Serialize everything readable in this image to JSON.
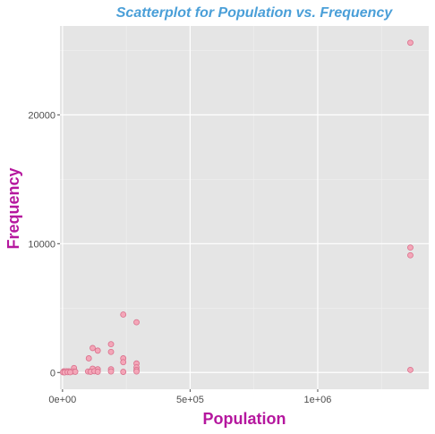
{
  "colors": {
    "title": "#4a9fd8",
    "axis_title": "#b5179e",
    "panel": "#e5e5e5",
    "grid_major": "#ffffff",
    "grid_minor": "#f0f0f0",
    "point_fill": "#f4a6b8",
    "point_stroke": "#d9708c",
    "tick": "#4d4d4d"
  },
  "chart_data": {
    "type": "scatter",
    "title": "Scatterplot for Population vs. Frequency",
    "xlabel": "Population",
    "ylabel": "Frequency",
    "xlim": [
      -10000,
      1435000
    ],
    "ylim": [
      -1300,
      26900
    ],
    "x_ticks": [
      {
        "value": 0,
        "label": "0e+00"
      },
      {
        "value": 500000,
        "label": "5e+05"
      },
      {
        "value": 1000000,
        "label": "1e+06"
      }
    ],
    "y_ticks": [
      {
        "value": 0,
        "label": "0"
      },
      {
        "value": 10000,
        "label": "10000"
      },
      {
        "value": 20000,
        "label": "20000"
      }
    ],
    "x_minor": [
      250000,
      750000,
      1250000
    ],
    "y_minor": [
      5000,
      15000,
      25000
    ],
    "grid": true,
    "legend": "none",
    "points": [
      {
        "x": 1363000,
        "y": 25600
      },
      {
        "x": 1363000,
        "y": 9700
      },
      {
        "x": 1363000,
        "y": 9100
      },
      {
        "x": 1363000,
        "y": 200
      },
      {
        "x": 238000,
        "y": 4500
      },
      {
        "x": 290000,
        "y": 3900
      },
      {
        "x": 190000,
        "y": 2200
      },
      {
        "x": 118000,
        "y": 1900
      },
      {
        "x": 138000,
        "y": 1700
      },
      {
        "x": 190000,
        "y": 1600
      },
      {
        "x": 103000,
        "y": 1100
      },
      {
        "x": 238000,
        "y": 1100
      },
      {
        "x": 238000,
        "y": 800
      },
      {
        "x": 290000,
        "y": 700
      },
      {
        "x": 290000,
        "y": 400
      },
      {
        "x": 45000,
        "y": 350
      },
      {
        "x": 118000,
        "y": 300
      },
      {
        "x": 138000,
        "y": 250
      },
      {
        "x": 190000,
        "y": 250
      },
      {
        "x": 290000,
        "y": 200
      },
      {
        "x": 5000,
        "y": 100
      },
      {
        "x": 15000,
        "y": 100
      },
      {
        "x": 25000,
        "y": 100
      },
      {
        "x": 40000,
        "y": 80
      },
      {
        "x": 50000,
        "y": 60
      },
      {
        "x": 100000,
        "y": 80
      },
      {
        "x": 110000,
        "y": 60
      },
      {
        "x": 125000,
        "y": 100
      },
      {
        "x": 138000,
        "y": 60
      },
      {
        "x": 190000,
        "y": 80
      },
      {
        "x": 238000,
        "y": 50
      },
      {
        "x": 290000,
        "y": 80
      },
      {
        "x": 2000,
        "y": 20
      },
      {
        "x": 8000,
        "y": 10
      },
      {
        "x": 20000,
        "y": 30
      },
      {
        "x": 30000,
        "y": 20
      }
    ]
  }
}
